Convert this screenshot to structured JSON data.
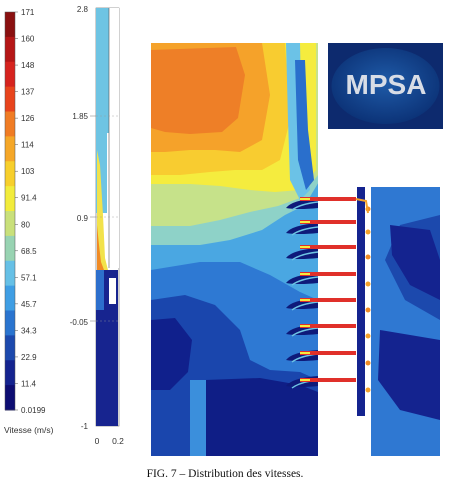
{
  "colorbar": {
    "labels": [
      "171",
      "160",
      "148",
      "137",
      "126",
      "114",
      "103",
      "91.4",
      "80",
      "68.5",
      "57.1",
      "45.7",
      "34.3",
      "22.9",
      "11.4",
      "0.0199"
    ],
    "colors": [
      "#8a1010",
      "#b51616",
      "#d6231e",
      "#e8441c",
      "#f07c24",
      "#f5a728",
      "#f7cf2c",
      "#f2ec3c",
      "#c9e07a",
      "#98d3b2",
      "#66c0e6",
      "#3f9ee4",
      "#2a74cf",
      "#1c49ad",
      "#14238f",
      "#0d0d72"
    ],
    "title": "Vitesse (m/s)"
  },
  "profile": {
    "y_ticks": [
      "2.8",
      "1.85",
      "0.9",
      "-0.05",
      "-1"
    ],
    "x_ticks": [
      "0",
      "0.2"
    ]
  },
  "logo": {
    "text": "MPSA"
  },
  "caption": "FIG. 7 – Distribution des vitesses."
}
